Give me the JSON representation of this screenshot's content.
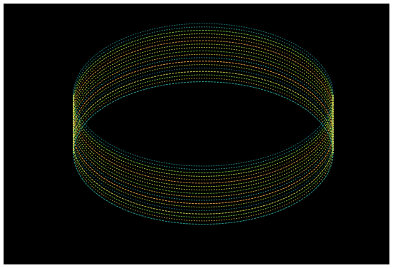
{
  "image": {
    "subject": "dotted-line-cylinder-ring",
    "background_color": "#000000",
    "border_color": "#ffffff",
    "palette": [
      "#1f8a8a",
      "#2fb3a0",
      "#6fb83a",
      "#a8c838",
      "#d8c040",
      "#e0a040",
      "#c8d850"
    ]
  }
}
